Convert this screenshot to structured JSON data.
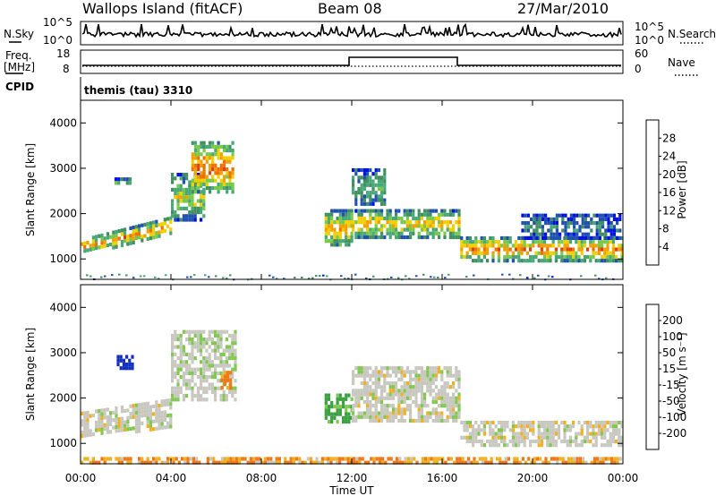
{
  "header": {
    "station": "Wallops Island (fitACF)",
    "beam": "Beam 08",
    "date": "27/Mar/2010"
  },
  "nsky": {
    "label": "N.Sky",
    "ticks": [
      "10^5",
      "10^0"
    ],
    "right_label": "N.Search",
    "right_ticks": [
      "10^5",
      "10^0"
    ]
  },
  "freq": {
    "label_line1": "Freq.",
    "label_line2": "[MHz]",
    "ticks": [
      "18",
      "8"
    ],
    "right_label": "Nave",
    "right_ticks": [
      "60",
      "0"
    ],
    "cpid_label": "CPID",
    "program": "themis (tau) 3310"
  },
  "chart_data": [
    {
      "type": "heatmap",
      "name": "power",
      "ylabel": "Slant Range [km]",
      "xlabel": "Time UT",
      "xlim": [
        0,
        24
      ],
      "ylim": [
        550,
        4500
      ],
      "x_ticks": [
        "00:00",
        "04:00",
        "08:00",
        "12:00",
        "16:00",
        "20:00",
        "00:00"
      ],
      "y_ticks": [
        1000,
        2000,
        3000,
        4000
      ],
      "colorbar_label": "Power [dB]",
      "colorbar_ticks": [
        "4",
        "8",
        "12",
        "16",
        "20",
        "24",
        "28"
      ],
      "colorbar_colors": [
        "#0010e0",
        "#2050b0",
        "#409060",
        "#48a878",
        "#78c84a",
        "#f0d000",
        "#f0a000",
        "#f07000",
        "#e04010",
        "#d80000"
      ],
      "echo_regions": [
        {
          "t_start": 0.0,
          "t_end": 4.0,
          "range_start": 1150,
          "range_end": 1450,
          "range_end_at_t_end": 1950,
          "power_db": 20
        },
        {
          "t_start": 4.0,
          "t_end": 5.5,
          "range_start": 1900,
          "range_end": 2900,
          "power_db": 14
        },
        {
          "t_start": 4.9,
          "t_end": 6.7,
          "range_start": 2500,
          "range_end": 3600,
          "power_db": 22
        },
        {
          "t_start": 1.5,
          "t_end": 2.2,
          "range_start": 2650,
          "range_end": 2800,
          "power_db": 12
        },
        {
          "t_start": 10.8,
          "t_end": 12.0,
          "range_start": 1300,
          "range_end": 2100,
          "power_db": 18
        },
        {
          "t_start": 12.0,
          "t_end": 16.8,
          "range_start": 1500,
          "range_end": 2100,
          "power_db": 17
        },
        {
          "t_start": 12.0,
          "t_end": 13.5,
          "range_start": 2200,
          "range_end": 3000,
          "power_db": 10
        },
        {
          "t_start": 16.8,
          "t_end": 23.9,
          "range_start": 1000,
          "range_end": 1500,
          "power_db": 21
        },
        {
          "t_start": 19.5,
          "t_end": 23.9,
          "range_start": 1500,
          "range_end": 2000,
          "power_db": 7
        }
      ]
    },
    {
      "type": "heatmap",
      "name": "velocity",
      "ylabel": "Slant Range [km]",
      "xlabel": "Time UT",
      "xlim": [
        0,
        24
      ],
      "ylim": [
        550,
        4500
      ],
      "x_ticks": [
        "00:00",
        "04:00",
        "08:00",
        "12:00",
        "16:00",
        "20:00",
        "00:00"
      ],
      "y_ticks": [
        1000,
        2000,
        3000,
        4000
      ],
      "colorbar_label": "Velocity [m s⁻¹]",
      "colorbar_ticks": [
        "200",
        "100",
        "50",
        "15",
        "-15",
        "-50",
        "-100",
        "-200"
      ],
      "colorbar_colors": [
        "#1030c0",
        "#2050c8",
        "#3aa040",
        "#80c850",
        "#c8c8c0",
        "#f0b020",
        "#f07818",
        "#f04010",
        "#e00000"
      ],
      "echo_regions": [
        {
          "t_start": 0.0,
          "t_end": 4.0,
          "range_start": 1150,
          "range_end": 1700,
          "range_end_at_t_end": 2000,
          "velocity": 0
        },
        {
          "t_start": 4.0,
          "t_end": 6.8,
          "range_start": 2000,
          "range_end": 3500,
          "velocity": 5
        },
        {
          "t_start": 1.6,
          "t_end": 2.3,
          "range_start": 2700,
          "range_end": 2950,
          "velocity": 220
        },
        {
          "t_start": 6.2,
          "t_end": 6.8,
          "range_start": 2200,
          "range_end": 2600,
          "velocity": -40
        },
        {
          "t_start": 10.8,
          "t_end": 12.0,
          "range_start": 1500,
          "range_end": 2100,
          "velocity": 40
        },
        {
          "t_start": 12.0,
          "t_end": 16.8,
          "range_start": 1500,
          "range_end": 2700,
          "velocity": 0
        },
        {
          "t_start": 16.8,
          "t_end": 23.9,
          "range_start": 1000,
          "range_end": 1500,
          "velocity": 0
        },
        {
          "t_start": 0.0,
          "t_end": 23.9,
          "range_start": 560,
          "range_end": 700,
          "velocity": -30
        }
      ]
    }
  ]
}
